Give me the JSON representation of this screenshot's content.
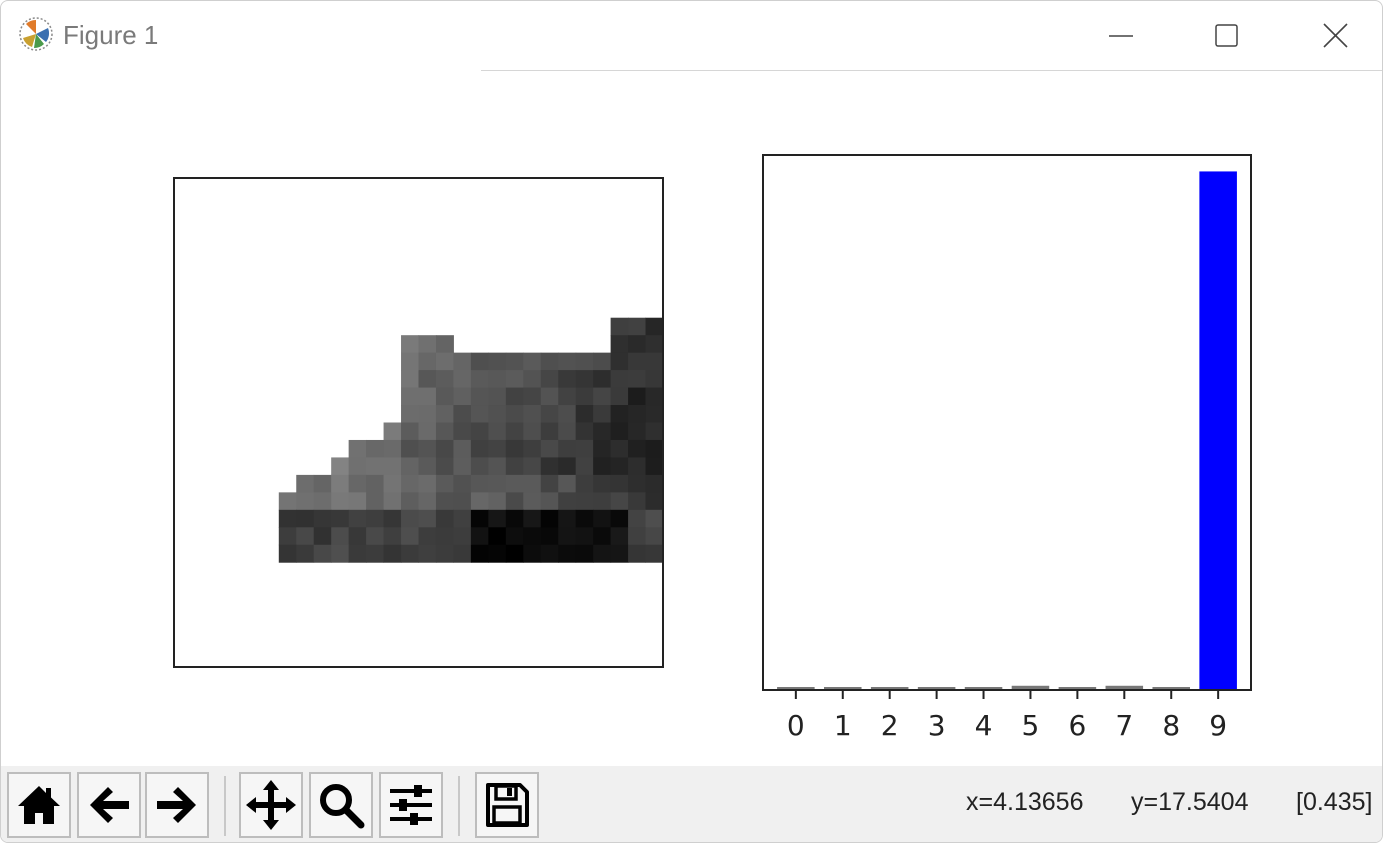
{
  "window": {
    "title": "Figure 1"
  },
  "window_controls": {
    "minimize": "minimize-icon",
    "maximize": "maximize-icon",
    "close": "close-icon"
  },
  "toolbar": {
    "buttons": [
      {
        "name": "home",
        "icon": "home-icon"
      },
      {
        "name": "back",
        "icon": "back-arrow-icon"
      },
      {
        "name": "forward",
        "icon": "forward-arrow-icon"
      },
      {
        "name": "pan",
        "icon": "move-icon"
      },
      {
        "name": "zoom",
        "icon": "magnifier-icon"
      },
      {
        "name": "configure-subplots",
        "icon": "sliders-icon"
      },
      {
        "name": "save",
        "icon": "floppy-disk-icon"
      }
    ]
  },
  "status": {
    "x_readout": "x=4.13656",
    "y_readout": "y=17.5404",
    "value_readout": "[0.435]"
  },
  "colors": {
    "bar_default": "#777777",
    "bar_predicted": "#0000ff",
    "toolbar_bg": "#f0f0f0"
  },
  "image": {
    "type": "grayscale-image",
    "description_icon": "sneaker-image"
  },
  "chart_data": {
    "type": "bar",
    "categories": [
      "0",
      "1",
      "2",
      "3",
      "4",
      "5",
      "6",
      "7",
      "8",
      "9"
    ],
    "values": [
      0.0,
      0.0,
      0.0,
      0.0,
      0.0,
      0.008,
      0.0,
      0.008,
      0.0,
      0.984
    ],
    "highlight_index": 9,
    "ylim": [
      0,
      1
    ],
    "title": "",
    "xlabel": "",
    "ylabel": "",
    "yticks_visible": false,
    "grid": false
  }
}
